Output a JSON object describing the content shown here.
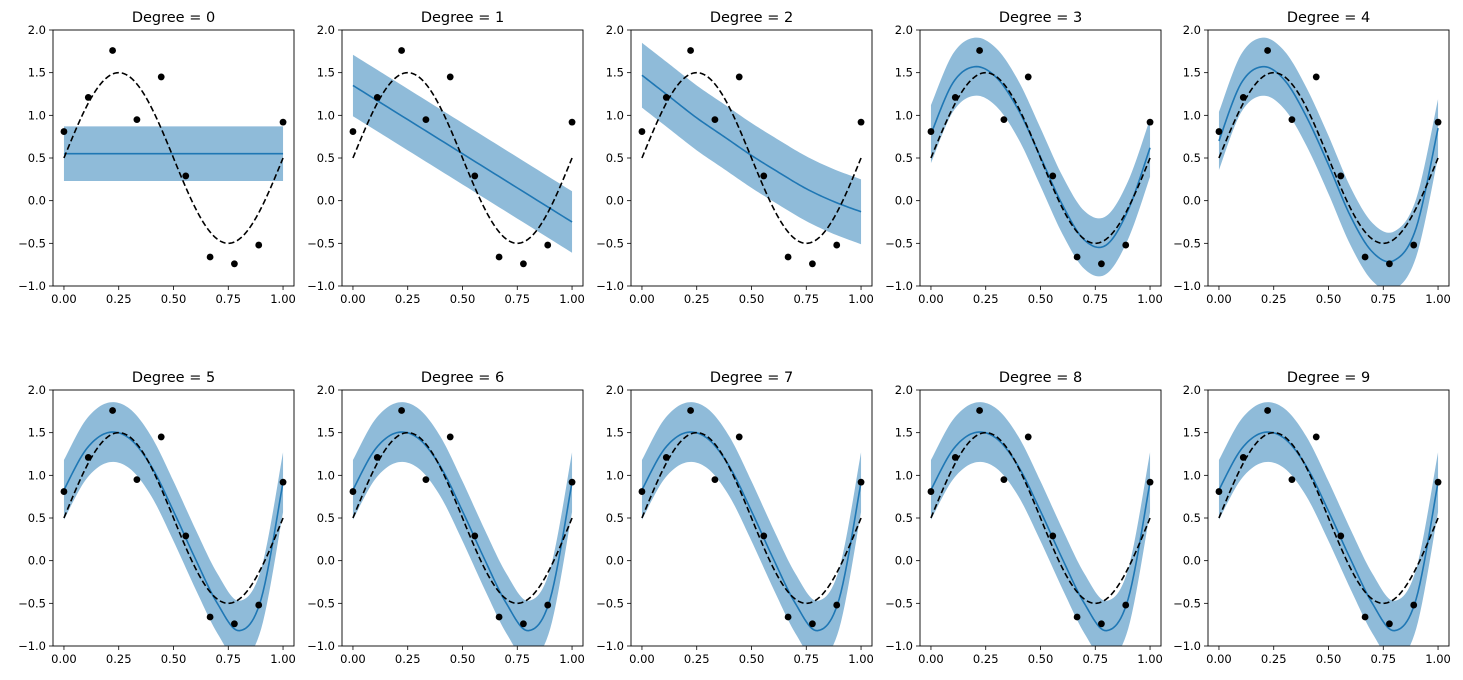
{
  "chart_data": {
    "type": "line",
    "layout": "2x5 grid of subplots",
    "x_ticks": [
      0.0,
      0.25,
      0.5,
      0.75,
      1.0
    ],
    "x_tick_labels": [
      "0.00",
      "0.25",
      "0.50",
      "0.75",
      "1.00"
    ],
    "y_ticks": [
      -1.0,
      -0.5,
      0.0,
      0.5,
      1.0,
      1.5,
      2.0
    ],
    "y_tick_labels": [
      "−1.0",
      "−0.5",
      "0.0",
      "0.5",
      "1.0",
      "1.5",
      "2.0"
    ],
    "xlim": [
      -0.05,
      1.05
    ],
    "ylim": [
      -1.0,
      2.0
    ],
    "colors": {
      "fit": "#1f77b4",
      "band": "#8fbbd9",
      "truth": "#000000",
      "points": "#000000"
    },
    "true_function": "0.5 + sin(2*pi*x)",
    "observations": {
      "x": [
        0.0,
        0.111,
        0.222,
        0.333,
        0.444,
        0.556,
        0.667,
        0.778,
        0.889,
        1.0
      ],
      "y": [
        0.81,
        1.21,
        1.76,
        0.95,
        1.45,
        0.29,
        -0.66,
        -0.74,
        -0.52,
        0.92
      ]
    },
    "subplots": [
      {
        "title": "Degree = 0",
        "fit": {
          "x": [
            0,
            1
          ],
          "y": [
            0.55,
            0.55
          ]
        },
        "band_halfwidth": 0.32
      },
      {
        "title": "Degree = 1",
        "fit": {
          "x": [
            0,
            0.25,
            0.5,
            0.75,
            1
          ],
          "y": [
            1.35,
            0.95,
            0.55,
            0.15,
            -0.25
          ]
        },
        "band_halfwidth": 0.36
      },
      {
        "title": "Degree = 2",
        "fit": {
          "x": [
            0,
            0.125,
            0.25,
            0.375,
            0.5,
            0.625,
            0.75,
            0.875,
            1
          ],
          "y": [
            1.47,
            1.22,
            0.97,
            0.75,
            0.53,
            0.33,
            0.14,
            -0.01,
            -0.13
          ]
        },
        "band_halfwidth": 0.38
      },
      {
        "title": "Degree = 3",
        "fit": {
          "x": [
            0,
            0.1,
            0.2,
            0.3,
            0.4,
            0.5,
            0.6,
            0.7,
            0.8,
            0.9,
            1
          ],
          "y": [
            0.78,
            1.38,
            1.57,
            1.44,
            1.06,
            0.51,
            -0.05,
            -0.46,
            -0.52,
            -0.11,
            0.62
          ]
        },
        "band_halfwidth": 0.34
      },
      {
        "title": "Degree = 4",
        "fit": {
          "x": [
            0,
            0.1,
            0.2,
            0.3,
            0.4,
            0.5,
            0.6,
            0.7,
            0.8,
            0.9,
            1
          ],
          "y": [
            0.7,
            1.37,
            1.57,
            1.41,
            0.98,
            0.42,
            -0.18,
            -0.6,
            -0.7,
            -0.32,
            0.85
          ]
        },
        "band_halfwidth": 0.34
      },
      {
        "title": "Degree = 5",
        "fit": {
          "x": [
            0,
            0.1,
            0.2,
            0.3,
            0.4,
            0.5,
            0.6,
            0.7,
            0.8,
            0.9,
            1
          ],
          "y": [
            0.83,
            1.3,
            1.5,
            1.43,
            1.1,
            0.58,
            0.02,
            -0.5,
            -0.82,
            -0.45,
            0.92
          ]
        },
        "band_halfwidth": 0.35
      },
      {
        "title": "Degree = 6",
        "fit": {
          "x": [
            0,
            0.1,
            0.2,
            0.3,
            0.4,
            0.5,
            0.6,
            0.7,
            0.8,
            0.9,
            1
          ],
          "y": [
            0.83,
            1.3,
            1.5,
            1.43,
            1.1,
            0.58,
            0.02,
            -0.5,
            -0.82,
            -0.45,
            0.92
          ]
        },
        "band_halfwidth": 0.35
      },
      {
        "title": "Degree = 7",
        "fit": {
          "x": [
            0,
            0.1,
            0.2,
            0.3,
            0.4,
            0.5,
            0.6,
            0.7,
            0.8,
            0.9,
            1
          ],
          "y": [
            0.83,
            1.3,
            1.5,
            1.43,
            1.1,
            0.58,
            0.02,
            -0.5,
            -0.82,
            -0.45,
            0.92
          ]
        },
        "band_halfwidth": 0.35
      },
      {
        "title": "Degree = 8",
        "fit": {
          "x": [
            0,
            0.1,
            0.2,
            0.3,
            0.4,
            0.5,
            0.6,
            0.7,
            0.8,
            0.9,
            1
          ],
          "y": [
            0.83,
            1.3,
            1.5,
            1.43,
            1.1,
            0.58,
            0.02,
            -0.5,
            -0.82,
            -0.45,
            0.92
          ]
        },
        "band_halfwidth": 0.35
      },
      {
        "title": "Degree = 9",
        "fit": {
          "x": [
            0,
            0.1,
            0.2,
            0.3,
            0.4,
            0.5,
            0.6,
            0.7,
            0.8,
            0.9,
            1
          ],
          "y": [
            0.83,
            1.3,
            1.5,
            1.43,
            1.1,
            0.58,
            0.02,
            -0.5,
            -0.82,
            -0.45,
            0.92
          ]
        },
        "band_halfwidth": 0.35
      }
    ]
  }
}
